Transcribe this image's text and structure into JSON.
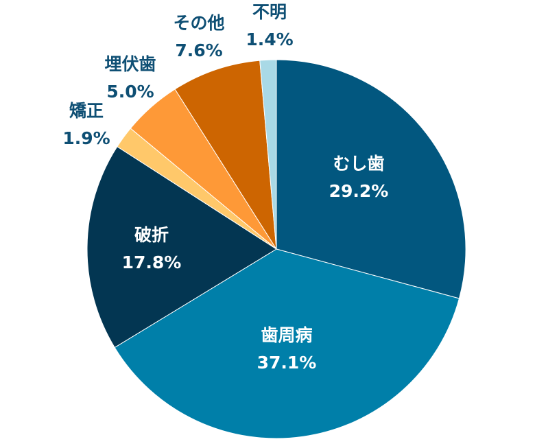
{
  "chart_data": {
    "type": "pie",
    "slices": [
      {
        "label": "むし歯",
        "value_text": "29.2%",
        "value": 29.2,
        "color": "#02577f",
        "label_position": "inside"
      },
      {
        "label": "歯周病",
        "value_text": "37.1%",
        "value": 37.1,
        "color": "#007fa9",
        "label_position": "inside"
      },
      {
        "label": "破折",
        "value_text": "17.8%",
        "value": 17.8,
        "color": "#033652",
        "label_position": "inside"
      },
      {
        "label": "矯正",
        "value_text": "1.9%",
        "value": 1.9,
        "color": "#ffc86a",
        "label_position": "outside"
      },
      {
        "label": "埋伏歯",
        "value_text": "5.0%",
        "value": 5.0,
        "color": "#fe9937",
        "label_position": "outside"
      },
      {
        "label": "その他",
        "value_text": "7.6%",
        "value": 7.6,
        "color": "#cd6501",
        "label_position": "outside"
      },
      {
        "label": "不明",
        "value_text": "1.4%",
        "value": 1.4,
        "color": "#a9d9e6",
        "label_position": "outside"
      }
    ],
    "start_angle": "12 o'clock",
    "direction": "clockwise",
    "legend": "none",
    "label_colors": {
      "inside": "#ffffff",
      "outside": "#0e4f74"
    }
  }
}
